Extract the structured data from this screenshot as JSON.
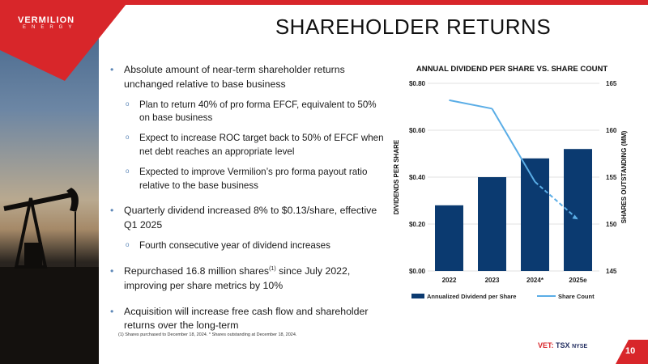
{
  "brand": {
    "name": "VERMILION",
    "sub": "ENERGY",
    "red": "#d8262a",
    "navy": "#0b3a70",
    "line": "#5aade6"
  },
  "title": "SHAREHOLDER RETURNS",
  "bullets": [
    {
      "text": "Absolute amount of near-term shareholder returns unchanged relative to base business",
      "subs": [
        "Plan to return 40% of pro forma EFCF, equivalent to 50% on base business",
        "Expect to increase ROC target back to 50% of EFCF when net debt reaches an appropriate level",
        "Expected to improve Vermilion’s pro forma payout ratio relative to the base business"
      ]
    },
    {
      "text": "Quarterly dividend increased 8% to $0.13/share, effective Q1 2025",
      "subs": [
        "Fourth consecutive year of dividend increases"
      ]
    },
    {
      "text_a": "Repurchased 16.8 million shares",
      "sup": "(1)",
      "text_b": " since July 2022, improving per share metrics by 10%"
    },
    {
      "text": "Acquisition will increase free cash flow and shareholder returns over the long-term"
    }
  ],
  "footnote": "(1) Shares purchased to December 18, 2024. * Shares outstanding at December 18, 2024.",
  "ticker": {
    "vet": "VET:",
    "tsx": "TSX",
    "nyse": "NYSE"
  },
  "page_number": "10",
  "chart_data": {
    "type": "bar",
    "title": "ANNUAL DIVIDEND PER SHARE VS. SHARE COUNT",
    "categories": [
      "2022",
      "2023",
      "2024*",
      "2025e"
    ],
    "ylabel": "DIVIDENDS PER SHARE",
    "y2label": "SHARES OUTSTANDING (MM)",
    "ylim": [
      0,
      0.8
    ],
    "y2lim": [
      145,
      165
    ],
    "yticks": [
      "$0.00",
      "$0.20",
      "$0.40",
      "$0.60",
      "$0.80"
    ],
    "y2ticks": [
      "145",
      "150",
      "155",
      "160",
      "165"
    ],
    "series": [
      {
        "name": "Annualized Dividend per Share",
        "type": "bar",
        "values": [
          0.28,
          0.4,
          0.48,
          0.52
        ]
      },
      {
        "name": "Share Count",
        "type": "line",
        "values": [
          163.2,
          162.3,
          154.5,
          150.5
        ],
        "dashed_from_index": 2
      }
    ],
    "legend": "bottom"
  }
}
